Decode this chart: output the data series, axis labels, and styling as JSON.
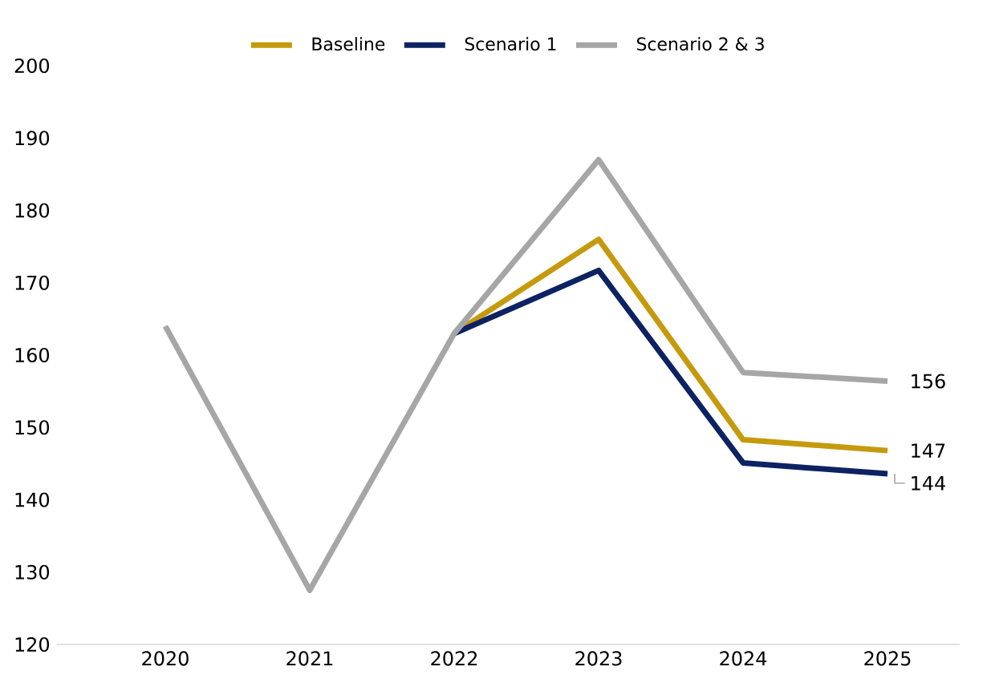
{
  "chart_data": {
    "type": "line",
    "categories": [
      "2020",
      "2021",
      "2022",
      "2023",
      "2024",
      "2025"
    ],
    "series": [
      {
        "name": "Baseline",
        "color": "#c59a0d",
        "values": [
          null,
          null,
          163,
          176,
          148.3,
          146.8
        ],
        "value_labels": [
          null,
          null,
          null,
          null,
          null,
          "147"
        ]
      },
      {
        "name": "Scenario 1",
        "color": "#0c2262",
        "values": [
          null,
          null,
          163,
          171.7,
          145.1,
          143.6
        ],
        "value_labels": [
          null,
          null,
          null,
          null,
          null,
          "144"
        ]
      },
      {
        "name": "Scenario 2 & 3",
        "color": "#a6a6a6",
        "values": [
          164,
          127.5,
          163,
          187,
          157.6,
          156.4
        ],
        "value_labels": [
          null,
          null,
          null,
          null,
          null,
          "156"
        ]
      }
    ],
    "ylim": [
      120,
      200
    ],
    "yticks": [
      120,
      130,
      140,
      150,
      160,
      170,
      180,
      190,
      200
    ],
    "legend": "top"
  }
}
